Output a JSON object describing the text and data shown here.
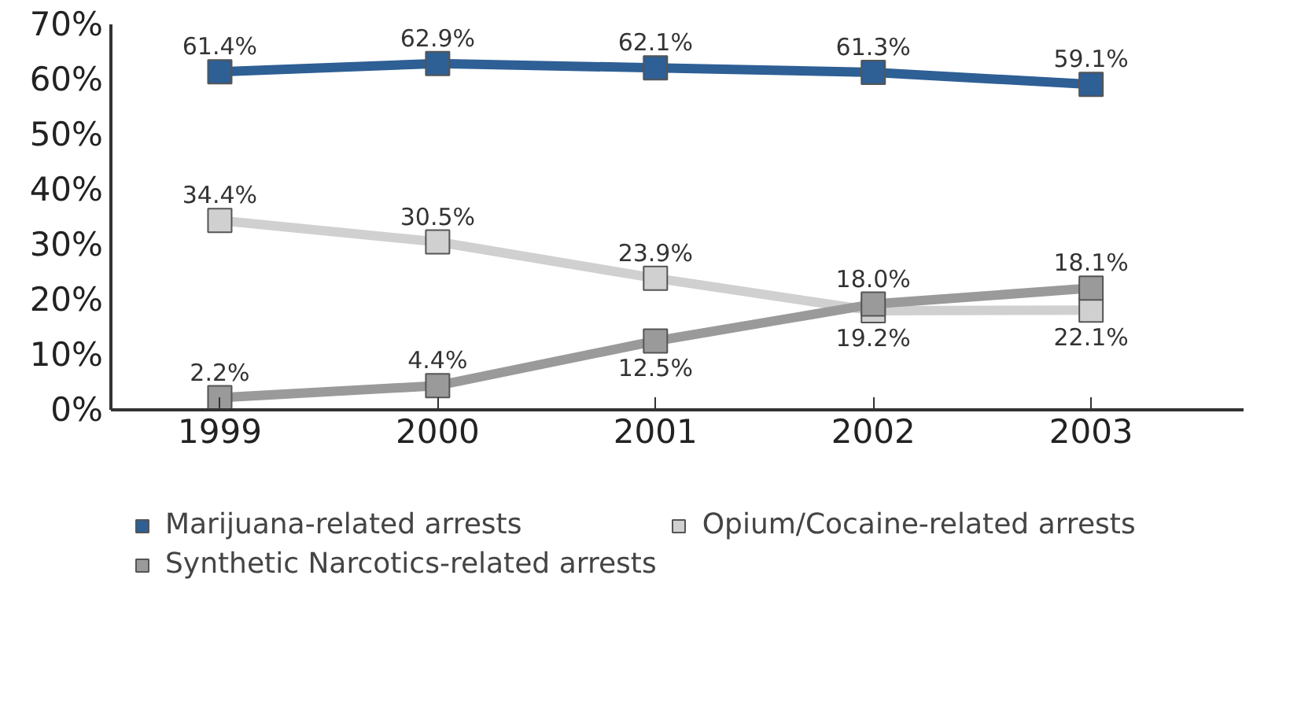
{
  "chart_data": {
    "type": "line",
    "categories": [
      "1999",
      "2000",
      "2001",
      "2002",
      "2003"
    ],
    "series": [
      {
        "name": "Marijuana-related arrests",
        "color": "#2e5f95",
        "values": [
          61.4,
          62.9,
          62.1,
          61.3,
          59.1
        ],
        "value_labels": [
          "61.4%",
          "62.9%",
          "62.1%",
          "61.3%",
          "59.1%"
        ]
      },
      {
        "name": "Opium/Cocaine-related arrests",
        "color": "#d0d0d0",
        "values": [
          34.4,
          30.5,
          23.9,
          18.0,
          18.1
        ],
        "value_labels": [
          "34.4%",
          "30.5%",
          "23.9%",
          "18.0%",
          "18.1%"
        ]
      },
      {
        "name": "Synthetic Narcotics-related arrests",
        "color": "#9a9a9a",
        "values": [
          2.2,
          4.4,
          12.5,
          19.2,
          22.1
        ],
        "value_labels": [
          "2.2%",
          "4.4%",
          "12.5%",
          "19.2%",
          "22.1%"
        ]
      }
    ],
    "ylim": [
      0,
      70
    ],
    "yticks": [
      {
        "value": 0,
        "label": "0%"
      },
      {
        "value": 10,
        "label": "10%"
      },
      {
        "value": 20,
        "label": "20%"
      },
      {
        "value": 30,
        "label": "30%"
      },
      {
        "value": 40,
        "label": "40%"
      },
      {
        "value": 50,
        "label": "50%"
      },
      {
        "value": 60,
        "label": "60%"
      },
      {
        "value": 70,
        "label": "70%"
      }
    ],
    "marker": "square",
    "line_style": "solid",
    "legend": "bottom"
  }
}
